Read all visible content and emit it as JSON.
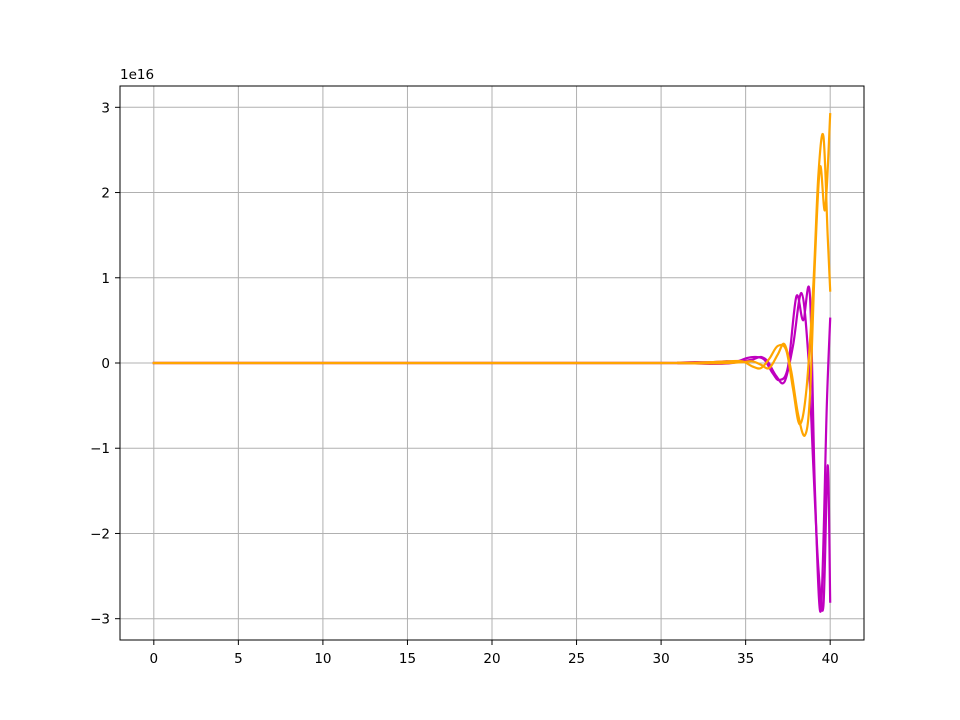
{
  "chart_data": {
    "type": "line",
    "title": "",
    "xlabel": "",
    "ylabel": "",
    "x_offset_text": "",
    "y_offset_text": "1e16",
    "xlim": [
      -2,
      42
    ],
    "ylim": [
      -3.25,
      3.25
    ],
    "y_scale_exponent": 16,
    "grid": true,
    "legend": "none",
    "x_ticks": [
      0,
      5,
      10,
      15,
      20,
      25,
      30,
      35,
      40
    ],
    "x_tick_labels": [
      "0",
      "5",
      "10",
      "15",
      "20",
      "25",
      "30",
      "35",
      "40"
    ],
    "y_ticks": [
      3,
      2,
      1,
      0,
      -1,
      -2,
      -3
    ],
    "y_tick_labels": [
      "3",
      "2",
      "1",
      "0",
      "−1",
      "−2",
      "−3"
    ],
    "series": [
      {
        "color": "#bf00bf",
        "x": [
          0,
          30,
          31,
          32,
          33,
          33.8,
          34.5,
          35.1,
          35.6,
          36.1,
          36.6,
          37.0,
          37.5,
          38.0,
          38.4,
          38.8,
          39.1,
          39.45,
          39.8,
          40.0
        ],
        "y": [
          0,
          0,
          0.005,
          0.01,
          0.01,
          0.02,
          0.02,
          0.06,
          0.07,
          0.04,
          -0.12,
          -0.2,
          -0.05,
          0.78,
          0.5,
          0.8,
          -1.5,
          -2.9,
          -0.5,
          0.52
        ]
      },
      {
        "color": "#bf00bf",
        "x": [
          0,
          30,
          31,
          32,
          33,
          34,
          34.8,
          35.4,
          35.9,
          36.3,
          36.8,
          37.3,
          37.8,
          38.3,
          38.7,
          39.0,
          39.3,
          39.6,
          39.85,
          40.0
        ],
        "y": [
          0,
          0,
          -0.003,
          -0.005,
          -0.01,
          -0.005,
          0.02,
          0.04,
          0.07,
          0.02,
          -0.15,
          -0.22,
          0.2,
          0.82,
          0.1,
          -1.2,
          -2.4,
          -2.85,
          -1.2,
          -2.8
        ]
      },
      {
        "color": "#ffa500",
        "x": [
          0,
          30,
          31,
          32,
          33,
          34,
          34.8,
          35.4,
          35.9,
          36.4,
          36.9,
          37.4,
          37.8,
          38.2,
          38.6,
          39.0,
          39.3,
          39.6,
          39.85,
          40.0
        ],
        "y": [
          0,
          0,
          0.003,
          0.005,
          0.01,
          0.02,
          0.02,
          -0.04,
          -0.06,
          0.05,
          0.2,
          0.15,
          -0.3,
          -0.72,
          -0.3,
          0.9,
          2.2,
          2.66,
          1.5,
          0.85
        ]
      },
      {
        "color": "#ffa500",
        "x": [
          0,
          30,
          31,
          32,
          33,
          34,
          34.8,
          35.4,
          35.9,
          36.4,
          36.9,
          37.3,
          37.7,
          38.1,
          38.5,
          38.8,
          39.1,
          39.4,
          39.7,
          40.0
        ],
        "y": [
          0,
          0,
          -0.002,
          -0.004,
          -0.005,
          0,
          0.01,
          0.02,
          -0.02,
          -0.06,
          0.1,
          0.22,
          -0.1,
          -0.6,
          -0.85,
          -0.4,
          1.2,
          2.3,
          1.8,
          2.92
        ]
      }
    ]
  }
}
